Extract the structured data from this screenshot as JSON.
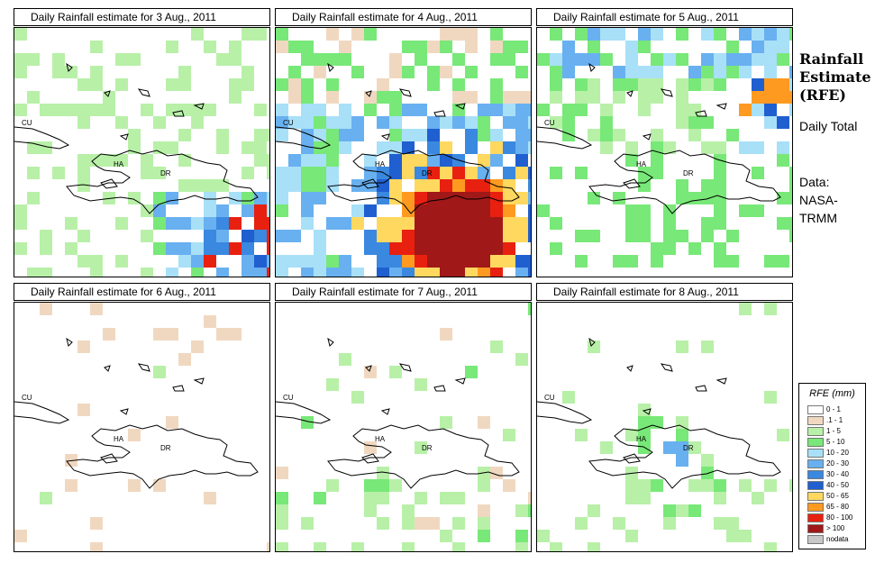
{
  "side_panel": {
    "title": "Rainfall Estimate (RFE)",
    "period": "Daily Total",
    "source_label": "Data:",
    "source": "NASA-TRMM"
  },
  "legend": {
    "title": "RFE (mm)",
    "items": [
      {
        "label": "0 - 1",
        "color": "#ffffff"
      },
      {
        "label": ".1 - 1",
        "color": "#f0d8c0"
      },
      {
        "label": "1 - 5",
        "color": "#b8f0a8"
      },
      {
        "label": "5 - 10",
        "color": "#78e878"
      },
      {
        "label": "10 - 20",
        "color": "#a8e0f8"
      },
      {
        "label": "20 - 30",
        "color": "#68b0f0"
      },
      {
        "label": "30 - 40",
        "color": "#3a88e0"
      },
      {
        "label": "40 - 50",
        "color": "#1f5fd0"
      },
      {
        "label": "50 - 65",
        "color": "#ffd860"
      },
      {
        "label": "65 - 80",
        "color": "#ff9a20"
      },
      {
        "label": "80 - 100",
        "color": "#e82010"
      },
      {
        "label": "> 100",
        "color": "#a01818"
      },
      {
        "label": "nodata",
        "color": "#c8c8c8"
      }
    ]
  },
  "map_labels": {
    "cuba": "CU",
    "haiti": "HA",
    "dominican_republic": "DR"
  },
  "panels": [
    {
      "title": "Daily Rainfall estimate for  3 Aug., 2011",
      "intensity": "moderate-southeast"
    },
    {
      "title": "Daily Rainfall estimate for  4 Aug., 2011",
      "intensity": "heavy-south"
    },
    {
      "title": "Daily Rainfall estimate for  5 Aug., 2011",
      "intensity": "moderate-north"
    },
    {
      "title": "Daily Rainfall estimate for  6 Aug., 2011",
      "intensity": "minimal"
    },
    {
      "title": "Daily Rainfall estimate for  7 Aug., 2011",
      "intensity": "light-south"
    },
    {
      "title": "Daily Rainfall estimate for  8 Aug., 2011",
      "intensity": "light-east"
    }
  ]
}
